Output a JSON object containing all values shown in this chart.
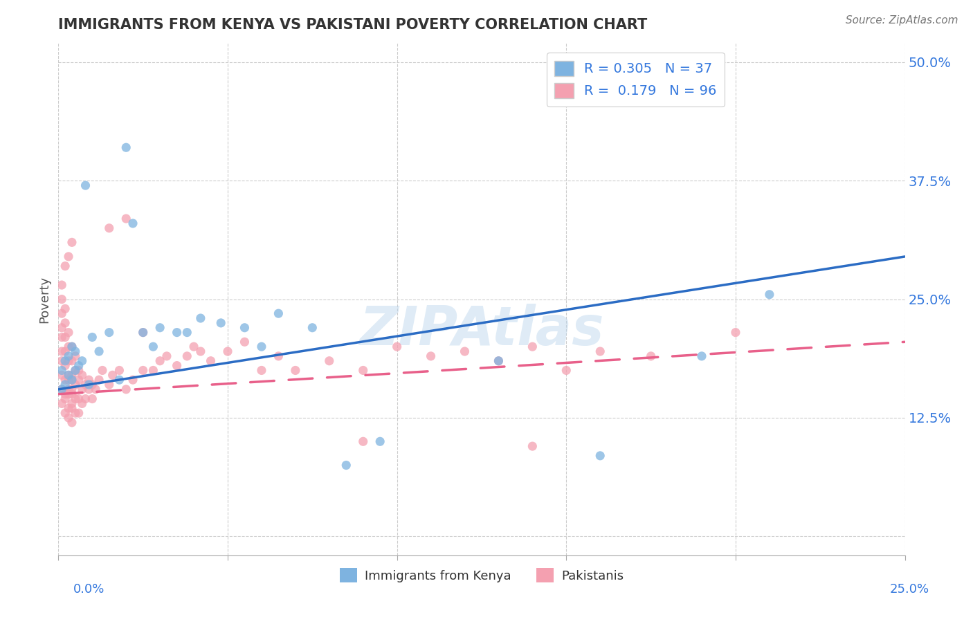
{
  "title": "IMMIGRANTS FROM KENYA VS PAKISTANI POVERTY CORRELATION CHART",
  "source_text": "Source: ZipAtlas.com",
  "ylabel": "Poverty",
  "xmin": 0.0,
  "xmax": 0.25,
  "ymin": -0.02,
  "ymax": 0.52,
  "kenya_R": 0.305,
  "kenya_N": 37,
  "pakistan_R": 0.179,
  "pakistan_N": 96,
  "kenya_color": "#7EB3E0",
  "pakistan_color": "#F4A0B0",
  "kenya_line_color": "#2B6CC4",
  "pakistan_line_color": "#E8608A",
  "watermark": "ZIPAtlas",
  "kenya_scatter_x": [
    0.001,
    0.001,
    0.002,
    0.002,
    0.003,
    0.003,
    0.004,
    0.004,
    0.005,
    0.005,
    0.006,
    0.007,
    0.008,
    0.009,
    0.01,
    0.012,
    0.015,
    0.018,
    0.02,
    0.022,
    0.025,
    0.028,
    0.03,
    0.035,
    0.038,
    0.042,
    0.048,
    0.055,
    0.06,
    0.065,
    0.075,
    0.085,
    0.095,
    0.13,
    0.16,
    0.19,
    0.21
  ],
  "kenya_scatter_y": [
    0.155,
    0.175,
    0.16,
    0.185,
    0.17,
    0.19,
    0.165,
    0.2,
    0.175,
    0.195,
    0.18,
    0.185,
    0.37,
    0.16,
    0.21,
    0.195,
    0.215,
    0.165,
    0.41,
    0.33,
    0.215,
    0.2,
    0.22,
    0.215,
    0.215,
    0.23,
    0.225,
    0.22,
    0.2,
    0.235,
    0.22,
    0.075,
    0.1,
    0.185,
    0.085,
    0.19,
    0.255
  ],
  "pakistan_scatter_x": [
    0.001,
    0.001,
    0.001,
    0.001,
    0.001,
    0.001,
    0.001,
    0.001,
    0.001,
    0.001,
    0.002,
    0.002,
    0.002,
    0.002,
    0.002,
    0.002,
    0.002,
    0.002,
    0.002,
    0.002,
    0.003,
    0.003,
    0.003,
    0.003,
    0.003,
    0.003,
    0.003,
    0.003,
    0.003,
    0.003,
    0.004,
    0.004,
    0.004,
    0.004,
    0.004,
    0.004,
    0.004,
    0.004,
    0.004,
    0.004,
    0.005,
    0.005,
    0.005,
    0.005,
    0.005,
    0.006,
    0.006,
    0.006,
    0.006,
    0.007,
    0.007,
    0.007,
    0.008,
    0.008,
    0.009,
    0.009,
    0.01,
    0.01,
    0.011,
    0.012,
    0.013,
    0.015,
    0.015,
    0.016,
    0.018,
    0.02,
    0.02,
    0.022,
    0.025,
    0.025,
    0.028,
    0.03,
    0.032,
    0.035,
    0.038,
    0.04,
    0.042,
    0.045,
    0.05,
    0.055,
    0.06,
    0.065,
    0.07,
    0.08,
    0.09,
    0.1,
    0.11,
    0.12,
    0.13,
    0.14,
    0.15,
    0.16,
    0.175,
    0.14,
    0.09,
    0.2
  ],
  "pakistan_scatter_y": [
    0.155,
    0.17,
    0.185,
    0.195,
    0.21,
    0.22,
    0.235,
    0.25,
    0.265,
    0.14,
    0.15,
    0.165,
    0.18,
    0.195,
    0.21,
    0.225,
    0.24,
    0.13,
    0.145,
    0.285,
    0.155,
    0.17,
    0.185,
    0.2,
    0.215,
    0.135,
    0.15,
    0.165,
    0.295,
    0.125,
    0.14,
    0.155,
    0.17,
    0.185,
    0.2,
    0.12,
    0.135,
    0.15,
    0.165,
    0.31,
    0.175,
    0.19,
    0.13,
    0.145,
    0.16,
    0.175,
    0.13,
    0.145,
    0.165,
    0.14,
    0.155,
    0.17,
    0.145,
    0.16,
    0.155,
    0.165,
    0.145,
    0.16,
    0.155,
    0.165,
    0.175,
    0.16,
    0.325,
    0.17,
    0.175,
    0.155,
    0.335,
    0.165,
    0.175,
    0.215,
    0.175,
    0.185,
    0.19,
    0.18,
    0.19,
    0.2,
    0.195,
    0.185,
    0.195,
    0.205,
    0.175,
    0.19,
    0.175,
    0.185,
    0.175,
    0.2,
    0.19,
    0.195,
    0.185,
    0.2,
    0.175,
    0.195,
    0.19,
    0.095,
    0.1,
    0.215
  ]
}
